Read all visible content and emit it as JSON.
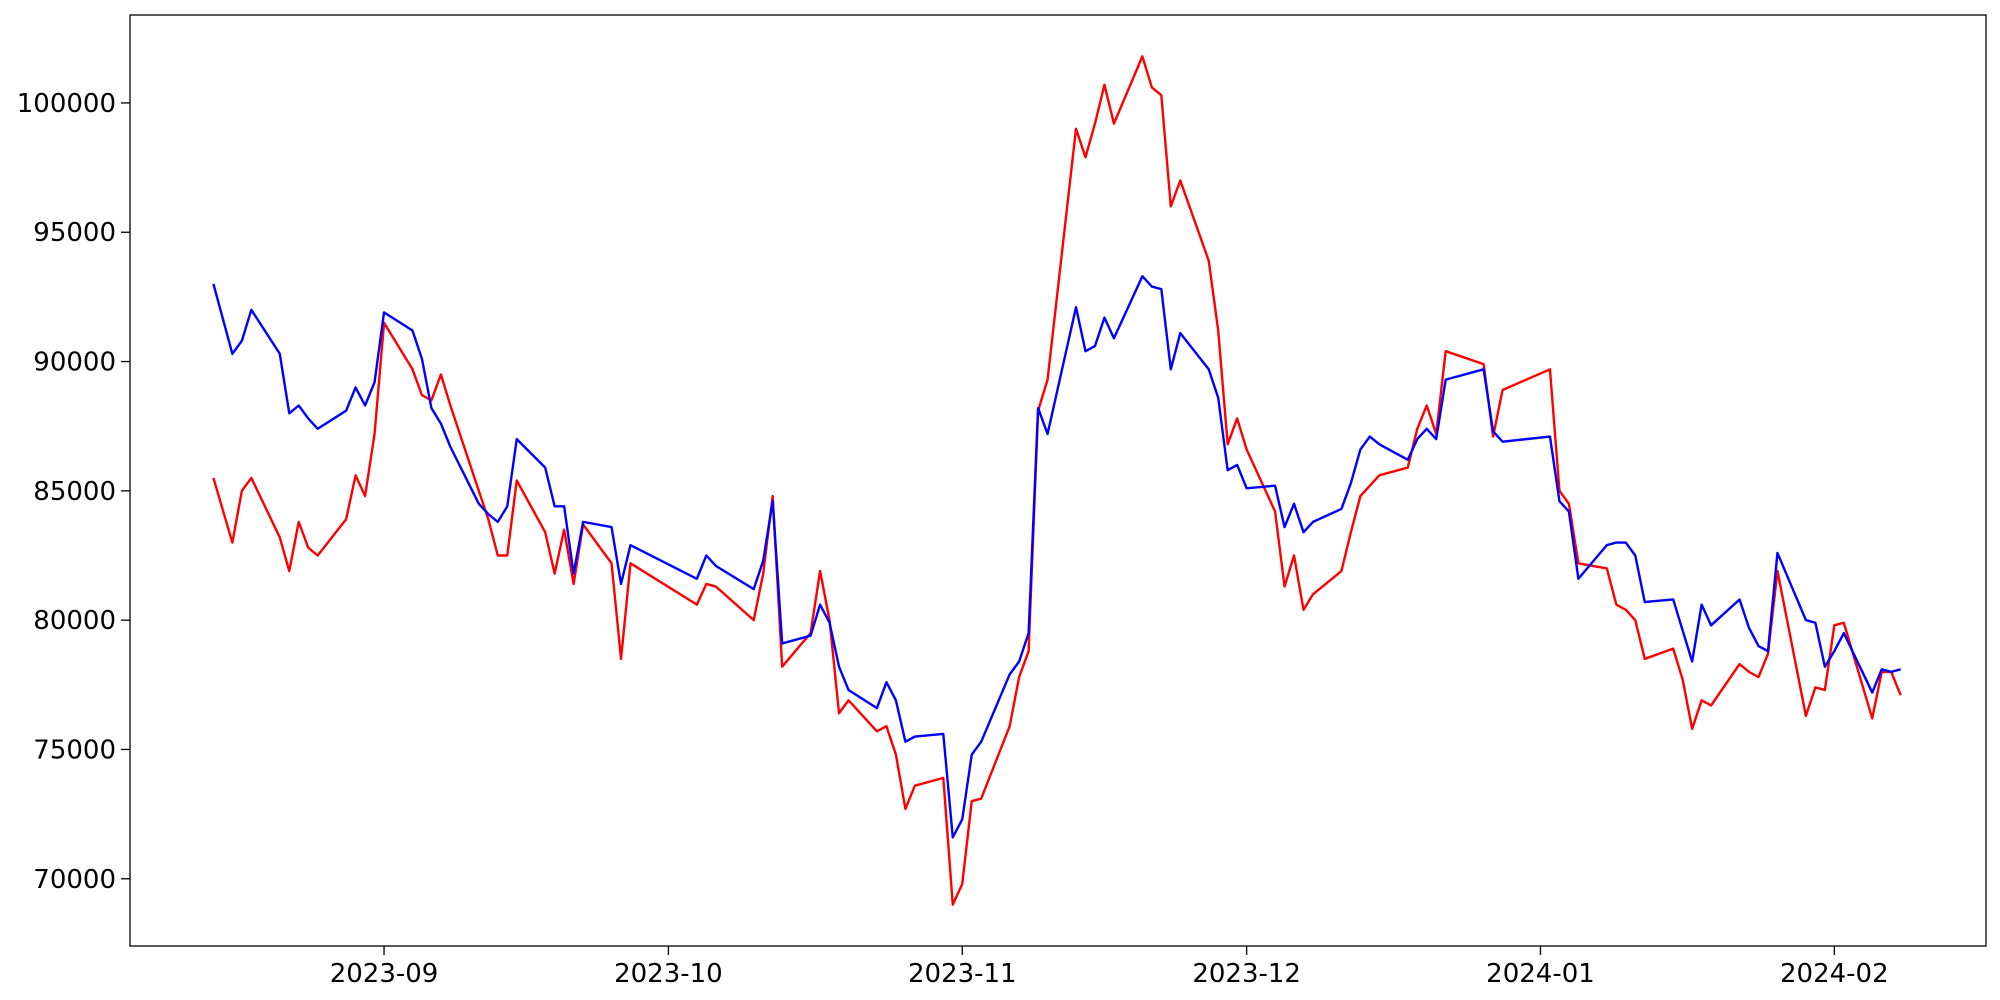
{
  "chart_data": {
    "type": "line",
    "x": [
      19583,
      19585,
      19586,
      19587,
      19590,
      19591,
      19592,
      19593,
      19594,
      19597,
      19598,
      19599,
      19600,
      19601,
      19604,
      19605,
      19606,
      19607,
      19608,
      19611,
      19612,
      19613,
      19614,
      19615,
      19618,
      19619,
      19620,
      19621,
      19622,
      19625,
      19626,
      19627,
      19634,
      19635,
      19636,
      19640,
      19641,
      19642,
      19643,
      19646,
      19647,
      19648,
      19649,
      19650,
      19653,
      19654,
      19655,
      19656,
      19657,
      19660,
      19661,
      19662,
      19663,
      19664,
      19667,
      19668,
      19669,
      19670,
      19671,
      19674,
      19675,
      19676,
      19677,
      19678,
      19681,
      19682,
      19683,
      19684,
      19685,
      19688,
      19689,
      19690,
      19691,
      19692,
      19695,
      19696,
      19697,
      19698,
      19699,
      19702,
      19703,
      19704,
      19705,
      19706,
      19709,
      19710,
      19711,
      19712,
      19713,
      19717,
      19718,
      19719,
      19724,
      19725,
      19726,
      19727,
      19730,
      19731,
      19732,
      19733,
      19734,
      19737,
      19738,
      19739,
      19740,
      19741,
      19744,
      19745,
      19746,
      19747,
      19748,
      19751,
      19752,
      19753,
      19754,
      19755,
      19758,
      19759,
      19760,
      19761
    ],
    "series": [
      {
        "color": "#ff0000",
        "values": [
          85500,
          83000,
          85000,
          85500,
          83200,
          81900,
          83800,
          82800,
          82500,
          83900,
          85600,
          84800,
          87200,
          91500,
          89700,
          88700,
          88500,
          89500,
          88300,
          85000,
          83900,
          82500,
          82500,
          85400,
          83400,
          81800,
          83500,
          81400,
          83700,
          82200,
          78500,
          82200,
          80600,
          81400,
          81300,
          80000,
          81800,
          84800,
          78200,
          79500,
          81900,
          80000,
          76400,
          76900,
          75700,
          75900,
          74800,
          72700,
          73600,
          73900,
          69000,
          69800,
          73000,
          73100,
          75900,
          77800,
          78800,
          88100,
          89300,
          99000,
          97900,
          99200,
          100700,
          99200,
          101800,
          100600,
          100300,
          96000,
          97000,
          93900,
          91200,
          86800,
          87800,
          86600,
          84200,
          81300,
          82500,
          80400,
          81000,
          81900,
          83400,
          84800,
          85200,
          85600,
          85900,
          87400,
          88300,
          87200,
          90400,
          89900,
          87100,
          88900,
          89700,
          85000,
          84500,
          82200,
          82000,
          80600,
          80400,
          80000,
          78500,
          78900,
          77700,
          75800,
          76900,
          76700,
          78300,
          78000,
          77800,
          78700,
          81900,
          76300,
          77400,
          77300,
          79800,
          79900,
          76200,
          78000,
          78000,
          77100
        ]
      },
      {
        "color": "#0000ff",
        "values": [
          93000,
          90300,
          90800,
          92000,
          90300,
          88000,
          88300,
          87800,
          87400,
          88100,
          89000,
          88300,
          89200,
          91900,
          91200,
          90100,
          88200,
          87600,
          86700,
          84500,
          84100,
          83800,
          84400,
          87000,
          85900,
          84400,
          84400,
          81800,
          83800,
          83600,
          81400,
          82900,
          81600,
          82500,
          82100,
          81200,
          82300,
          84600,
          79100,
          79400,
          80600,
          79900,
          78200,
          77300,
          76600,
          77600,
          76900,
          75300,
          75500,
          75600,
          71600,
          72300,
          74800,
          75300,
          77900,
          78400,
          79500,
          88200,
          87200,
          92100,
          90400,
          90600,
          91700,
          90900,
          93300,
          92900,
          92800,
          89700,
          91100,
          89700,
          88600,
          85800,
          86000,
          85100,
          85200,
          83600,
          84500,
          83400,
          83800,
          84300,
          85300,
          86600,
          87100,
          86800,
          86200,
          87000,
          87400,
          87000,
          89300,
          89700,
          87300,
          86900,
          87100,
          84600,
          84200,
          81600,
          82900,
          83000,
          83000,
          82500,
          80700,
          80800,
          79600,
          78400,
          80600,
          79800,
          80800,
          79700,
          79000,
          78800,
          82600,
          80000,
          79900,
          78200,
          78800,
          79500,
          77200,
          78100,
          78000,
          78100
        ]
      }
    ],
    "xlim": [
      19574.2,
      19770
    ],
    "xticks": [
      {
        "value": 19601,
        "label": "2023-09"
      },
      {
        "value": 19631,
        "label": "2023-10"
      },
      {
        "value": 19662,
        "label": "2023-11"
      },
      {
        "value": 19692,
        "label": "2023-12"
      },
      {
        "value": 19723,
        "label": "2024-01"
      },
      {
        "value": 19754,
        "label": "2024-02"
      }
    ],
    "ylim": [
      67400,
      103400
    ],
    "yticks": [
      70000,
      75000,
      80000,
      85000,
      90000,
      95000,
      100000
    ],
    "grid": false
  }
}
